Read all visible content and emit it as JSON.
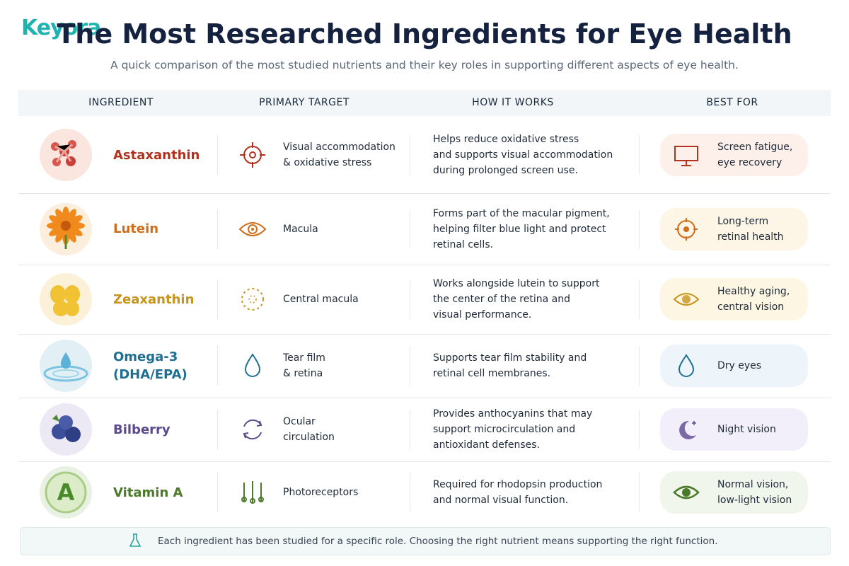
{
  "logo": "Keyora",
  "header": {
    "title": "The Most Researched Ingredients for Eye Health",
    "subtitle": "A quick comparison of the most studied nutrients and their key roles in supporting different aspects of eye health."
  },
  "table": {
    "columns": [
      "INGREDIENT",
      "PRIMARY TARGET",
      "HOW IT WORKS",
      "BEST FOR"
    ],
    "rows": [
      {
        "ingredient": [
          "Astaxanthin"
        ],
        "target": [
          "Visual accommodation",
          "& oxidative stress"
        ],
        "how": [
          "Helps reduce oxidative stress",
          "and supports visual accommodation",
          "during prolonged screen use."
        ],
        "best": [
          "Screen fatigue,",
          "eye recovery"
        ]
      },
      {
        "ingredient": [
          "Lutein"
        ],
        "target": [
          "Macula"
        ],
        "how": [
          "Forms part of the macular pigment,",
          "helping filter blue light and protect",
          "retinal cells."
        ],
        "best": [
          "Long-term",
          "retinal health"
        ]
      },
      {
        "ingredient": [
          "Zeaxanthin"
        ],
        "target": [
          "Central macula"
        ],
        "how": [
          "Works alongside lutein to support",
          "the center of the retina and",
          "visual performance."
        ],
        "best": [
          "Healthy aging,",
          "central vision"
        ]
      },
      {
        "ingredient": [
          "Omega-3",
          "(DHA/EPA)"
        ],
        "target": [
          "Tear film",
          "& retina"
        ],
        "how": [
          "Supports tear film stability and",
          "retinal cell membranes."
        ],
        "best": [
          "Dry eyes"
        ]
      },
      {
        "ingredient": [
          "Bilberry"
        ],
        "target": [
          "Ocular",
          "circulation"
        ],
        "how": [
          "Provides anthocyanins that may",
          "support microcirculation and",
          "antioxidant defenses."
        ],
        "best": [
          "Night vision"
        ]
      },
      {
        "ingredient": [
          "Vitamin A"
        ],
        "target": [
          "Photoreceptors"
        ],
        "how": [
          "Required for rhodopsin production",
          "and normal visual function."
        ],
        "best": [
          "Normal vision,",
          "low-light vision"
        ]
      }
    ]
  },
  "footer": "Each ingredient has been studied for a specific role. Choosing the right nutrient means supporting the right function."
}
